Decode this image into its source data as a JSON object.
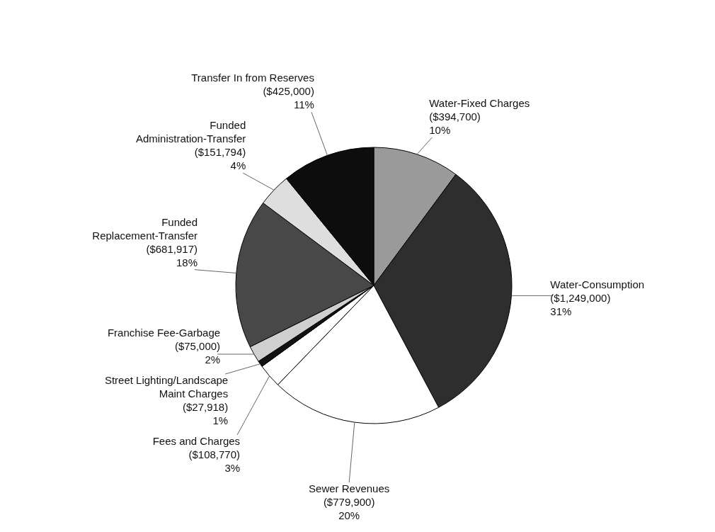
{
  "chart_data": {
    "type": "pie",
    "categories": [
      "Water-Fixed Charges",
      "Water-Consumption",
      "Sewer Revenues",
      "Fees and Charges",
      "Street Lighting/Landscape Maint Charges",
      "Franchise Fee-Garbage",
      "Funded Replacement-Transfer",
      "Funded Administration-Transfer",
      "Transfer In from Reserves"
    ],
    "values": [
      394700,
      1249000,
      779900,
      108770,
      27918,
      75000,
      681917,
      151794,
      425000
    ],
    "value_labels": [
      "($394,700)\n10%",
      "($1,249,000)\n31%",
      "($779,900)\n20%",
      "($108,770)\n3%",
      "($27,918)\n1%",
      "($75,000)\n2%",
      "($681,917)\n18%",
      "($151,794)\n4%",
      "($425,000)\n11%"
    ],
    "colors": [
      "#9a9a9a",
      "#2e2e2e",
      "#ffffff",
      "#ffffff",
      "#111111",
      "#cfcfcf",
      "#484848",
      "#dedede",
      "#0d0d0d"
    ]
  }
}
